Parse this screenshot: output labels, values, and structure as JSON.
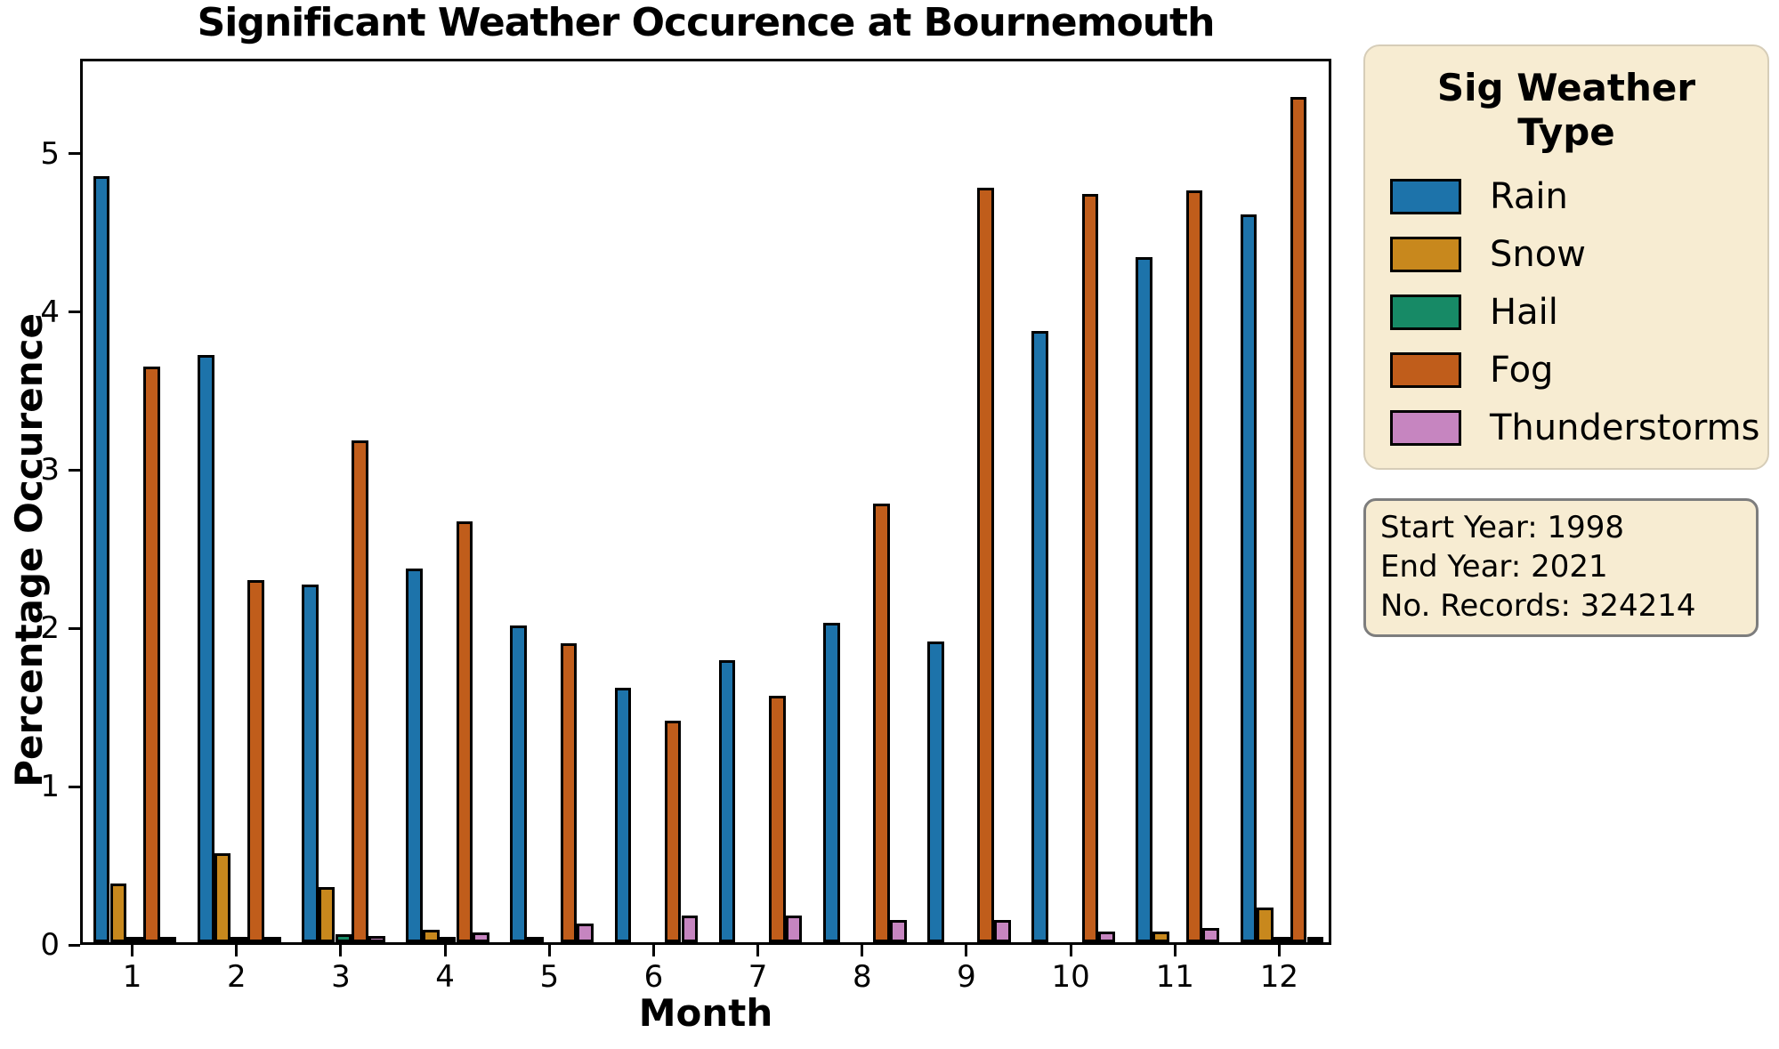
{
  "title": "Significant Weather Occurence at Bournemouth",
  "chart_data": {
    "type": "bar",
    "title": "Significant Weather Occurence at Bournemouth",
    "xlabel": "Month",
    "ylabel": "Percentage Occurence",
    "categories": [
      "1",
      "2",
      "3",
      "4",
      "5",
      "6",
      "7",
      "8",
      "9",
      "10",
      "11",
      "12"
    ],
    "series": [
      {
        "name": "Rain",
        "color": "#1d73aa",
        "values": [
          4.84,
          3.71,
          2.26,
          2.36,
          2.0,
          1.61,
          1.78,
          2.02,
          1.9,
          3.86,
          4.33,
          4.6
        ]
      },
      {
        "name": "Snow",
        "color": "#c8881d",
        "values": [
          0.37,
          0.56,
          0.35,
          0.08,
          0.01,
          0,
          0,
          0,
          0,
          0,
          0.07,
          0.22
        ]
      },
      {
        "name": "Hail",
        "color": "#178a66",
        "values": [
          0.01,
          0.01,
          0.05,
          0.03,
          0,
          0,
          0,
          0,
          0,
          0,
          0,
          0.01
        ]
      },
      {
        "name": "Fog",
        "color": "#c05d1b",
        "values": [
          3.64,
          2.29,
          3.17,
          2.66,
          1.89,
          1.4,
          1.56,
          2.77,
          4.77,
          4.73,
          4.75,
          5.34
        ]
      },
      {
        "name": "Thunderstorms",
        "color": "#c685c0",
        "values": [
          0.03,
          0.02,
          0.04,
          0.06,
          0.12,
          0.17,
          0.17,
          0.14,
          0.14,
          0.07,
          0.09,
          0.03
        ]
      }
    ],
    "ylim": [
      0,
      5.6
    ],
    "yticks": [
      0,
      1,
      2,
      3,
      4,
      5
    ],
    "grid": false,
    "legend_position": "outside-upper-right",
    "bar_edge_color": "#000000"
  },
  "legend": {
    "title_line1": "Sig Weather",
    "title_line2": "Type",
    "entries": [
      "Rain",
      "Snow",
      "Hail",
      "Fog",
      "Thunderstorms"
    ]
  },
  "info_box": {
    "lines": [
      "Start Year: 1998",
      "End Year: 2021",
      "No. Records: 324214"
    ]
  },
  "colors": {
    "panel_background": "#f7ecd2",
    "axis": "#000000",
    "text": "#000000"
  }
}
